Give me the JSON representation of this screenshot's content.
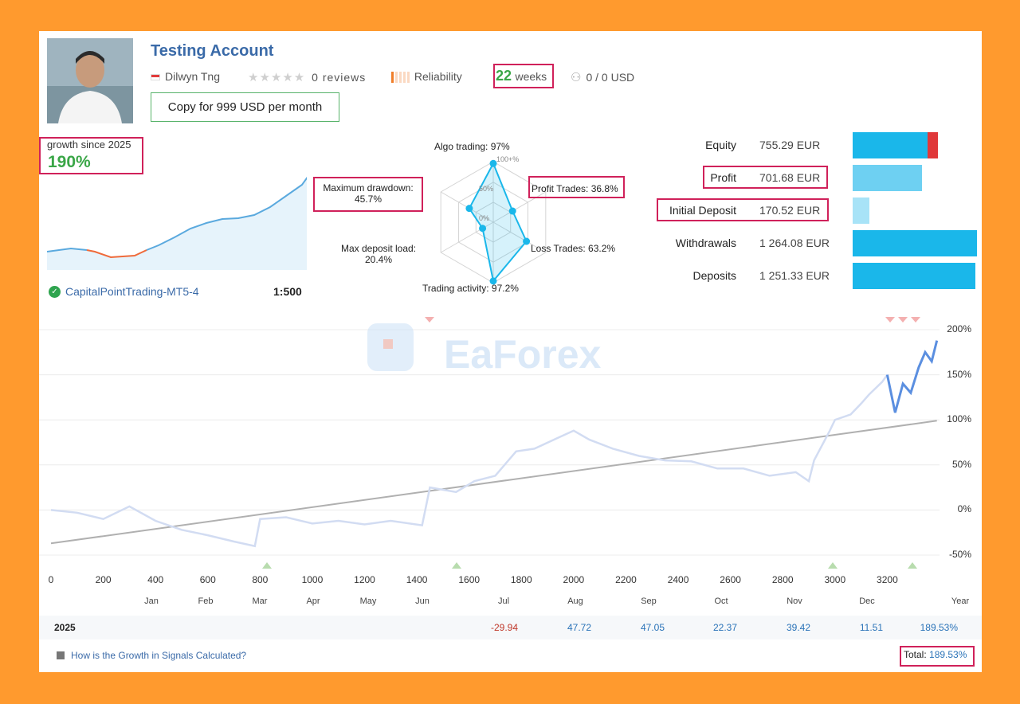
{
  "header": {
    "title": "Testing Account",
    "author": "Dilwyn Tng",
    "reviews": "0 reviews",
    "reliability_label": "Reliability",
    "weeks_num": "22",
    "weeks_unit": "weeks",
    "subscribers": "0 / 0 USD",
    "copy_button": "Copy for 999 USD per month"
  },
  "growth": {
    "label": "growth since 2025",
    "value": "190%"
  },
  "broker": {
    "name": "CapitalPointTrading-MT5-4",
    "leverage": "1:500"
  },
  "radar": {
    "algo": "Algo trading: 97%",
    "profit_trades": "Profit Trades: 36.8%",
    "loss_trades": "Loss Trades: 63.2%",
    "activity": "Trading activity: 97.2%",
    "deposit_load_label": "Max deposit load:",
    "deposit_load_value": "20.4%",
    "drawdown_label": "Maximum drawdown:",
    "drawdown_value": "45.7%",
    "ring_top": "100+%",
    "ring_mid": "50%",
    "ring_zero": "0%",
    "values": {
      "algo": 0.97,
      "profit": 0.368,
      "loss": 0.632,
      "activity": 0.972,
      "load": 0.204,
      "drawdown": 0.457
    }
  },
  "stats": [
    {
      "label": "Equity",
      "value": "755.29 EUR",
      "frac": 0.6,
      "color": "#1ab7ea"
    },
    {
      "label": "Profit",
      "value": "701.68 EUR",
      "frac": 0.56,
      "color": "#6ed0f2"
    },
    {
      "label": "Initial Deposit",
      "value": "170.52 EUR",
      "frac": 0.135,
      "color": "#a8e3f7"
    },
    {
      "label": "Withdrawals",
      "value": "1 264.08 EUR",
      "frac": 1.0,
      "color": "#1ab7ea"
    },
    {
      "label": "Deposits",
      "value": "1 251.33 EUR",
      "frac": 0.99,
      "color": "#1ab7ea"
    }
  ],
  "watermark": "EaForex",
  "chart_data": {
    "type": "line",
    "x_ticks": [
      "0",
      "200",
      "400",
      "600",
      "800",
      "1000",
      "1200",
      "1400",
      "1600",
      "1800",
      "2000",
      "2200",
      "2400",
      "2600",
      "2800",
      "3000",
      "3200"
    ],
    "y_ticks": [
      "200%",
      "150%",
      "100%",
      "50%",
      "0%",
      "-50%"
    ],
    "months": [
      "Jan",
      "Feb",
      "Mar",
      "Apr",
      "May",
      "Jun",
      "Jul",
      "Aug",
      "Sep",
      "Oct",
      "Nov",
      "Dec",
      "Year"
    ],
    "ylim": [
      -60,
      215
    ],
    "xlim": [
      0,
      3400
    ],
    "growth_series": [
      [
        0,
        0
      ],
      [
        100,
        -3
      ],
      [
        200,
        -10
      ],
      [
        300,
        4
      ],
      [
        400,
        -12
      ],
      [
        500,
        -22
      ],
      [
        600,
        -28
      ],
      [
        700,
        -35
      ],
      [
        780,
        -40
      ],
      [
        800,
        -10
      ],
      [
        900,
        -8
      ],
      [
        1000,
        -15
      ],
      [
        1100,
        -12
      ],
      [
        1200,
        -16
      ],
      [
        1300,
        -12
      ],
      [
        1420,
        -17
      ],
      [
        1450,
        25
      ],
      [
        1550,
        20
      ],
      [
        1620,
        32
      ],
      [
        1700,
        38
      ],
      [
        1780,
        65
      ],
      [
        1850,
        68
      ],
      [
        1940,
        80
      ],
      [
        2000,
        88
      ],
      [
        2060,
        78
      ],
      [
        2150,
        68
      ],
      [
        2250,
        60
      ],
      [
        2350,
        55
      ],
      [
        2450,
        54
      ],
      [
        2550,
        46
      ],
      [
        2650,
        46
      ],
      [
        2750,
        38
      ],
      [
        2850,
        42
      ],
      [
        2900,
        32
      ],
      [
        2920,
        55
      ],
      [
        2980,
        88
      ],
      [
        3000,
        100
      ],
      [
        3060,
        106
      ],
      [
        3100,
        118
      ],
      [
        3130,
        128
      ],
      [
        3180,
        142
      ],
      [
        3200,
        150
      ]
    ],
    "growth_series_highlight": [
      [
        3200,
        150
      ],
      [
        3230,
        108
      ],
      [
        3260,
        140
      ],
      [
        3290,
        130
      ],
      [
        3320,
        158
      ],
      [
        3345,
        175
      ],
      [
        3370,
        165
      ],
      [
        3390,
        188
      ]
    ],
    "trend": [
      [
        0,
        -37
      ],
      [
        3390,
        99
      ]
    ]
  },
  "year_row": {
    "year": "2025",
    "values": [
      "-29.94",
      "47.72",
      "47.05",
      "22.37",
      "39.42",
      "11.51",
      "189.53%"
    ]
  },
  "footer": {
    "help_link": "How is the Growth in Signals Calculated?",
    "total_label": "Total:",
    "total_value": "189.53%"
  }
}
